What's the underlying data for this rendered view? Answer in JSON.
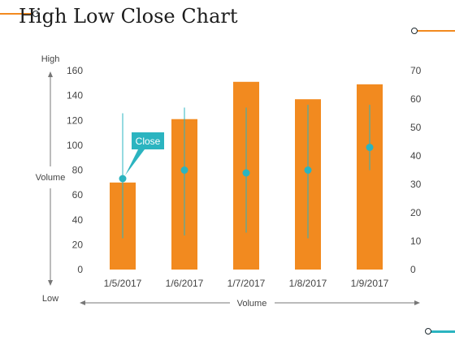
{
  "page": {
    "title": "High Low Close Chart"
  },
  "chart_data": {
    "type": "bar",
    "title": "High Low Close Chart",
    "categories": [
      "1/5/2017",
      "1/6/2017",
      "1/7/2017",
      "1/8/2017",
      "1/9/2017"
    ],
    "series": [
      {
        "kind": "bar",
        "axis": "left",
        "values": [
          70,
          121,
          151,
          137,
          149
        ]
      },
      {
        "kind": "high-low-close",
        "axis": "right",
        "high": [
          55,
          57,
          57,
          58,
          58
        ],
        "low": [
          11,
          12,
          13,
          11,
          35
        ],
        "close": [
          32,
          35,
          34,
          35,
          43
        ]
      }
    ],
    "y_left": {
      "range": [
        0,
        160
      ],
      "ticks": [
        0,
        20,
        40,
        60,
        80,
        100,
        120,
        140,
        160
      ],
      "label": "Volume",
      "top_label": "High",
      "bottom_label": "Low"
    },
    "y_right": {
      "range": [
        0,
        70
      ],
      "ticks": [
        0,
        10,
        20,
        30,
        40,
        50,
        60,
        70
      ]
    },
    "x_axis": {
      "label": "Volume"
    },
    "callout": {
      "text": "Close",
      "category_index": 0
    },
    "grid": false,
    "legend": "none",
    "colors": {
      "bar": "#f28a1f",
      "hlc": "#2bb4c0",
      "text": "#444444",
      "axis": "#777777"
    }
  }
}
